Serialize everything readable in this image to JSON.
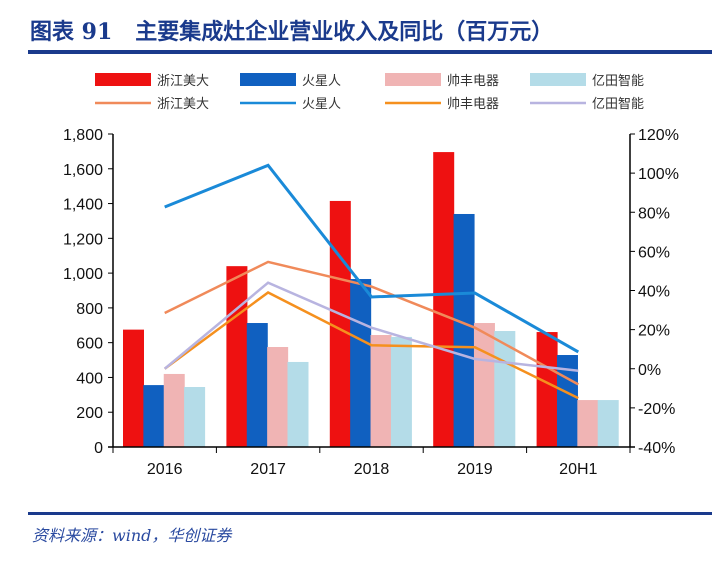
{
  "title": "图表 91   主要集成灶企业营业收入及同比（百万元）",
  "footer": "资料来源：wind，华创证券",
  "chart_data": {
    "type": "bar",
    "categories": [
      "2016",
      "2017",
      "2018",
      "2019",
      "20H1"
    ],
    "left_axis": {
      "ylim": [
        0,
        1800
      ],
      "ticks": [
        0,
        200,
        400,
        600,
        800,
        "1,000",
        "1,200",
        "1,400",
        "1,600",
        "1,800"
      ]
    },
    "right_axis": {
      "ylim": [
        -40,
        120
      ],
      "unit": "%",
      "ticks": [
        "-40%",
        "-20%",
        "0%",
        "20%",
        "40%",
        "60%",
        "80%",
        "100%",
        "120%"
      ]
    },
    "bar_series": [
      {
        "name": "浙江美大",
        "color": "#ee1111",
        "values": [
          675,
          1040,
          1415,
          1696,
          661
        ]
      },
      {
        "name": "火星人",
        "color": "#1060c0",
        "values": [
          356,
          713,
          966,
          1340,
          529
        ]
      },
      {
        "name": "帅丰电器",
        "color": "#f0b4b4",
        "values": [
          420,
          575,
          644,
          713,
          270
        ]
      },
      {
        "name": "亿田智能",
        "color": "#b4dce8",
        "values": [
          345,
          489,
          633,
          667,
          270
        ]
      }
    ],
    "line_series": [
      {
        "name": "浙江美大",
        "color": "#f08a5a",
        "values": [
          28.5,
          54.6,
          42,
          21,
          -8
        ]
      },
      {
        "name": "火星人",
        "color": "#1a8ad8",
        "values": [
          82.7,
          104,
          36.7,
          38.7,
          8.6
        ]
      },
      {
        "name": "帅丰电器",
        "color": "#f5901e",
        "values": [
          0,
          39,
          12,
          11,
          -15
        ]
      },
      {
        "name": "亿田智能",
        "color": "#b8b4e0",
        "values": [
          0,
          44,
          21,
          5,
          -1
        ]
      }
    ],
    "legend_placement": "top",
    "grid": false
  }
}
